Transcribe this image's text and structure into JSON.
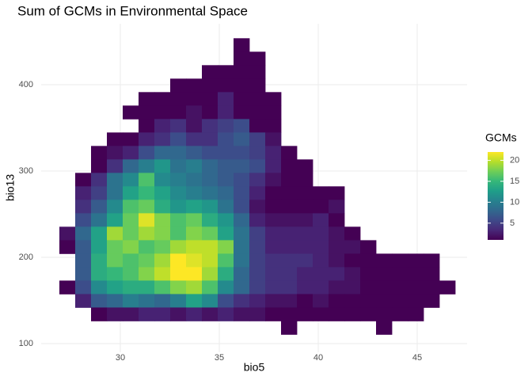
{
  "chart_data": {
    "type": "heatmap",
    "title": "Sum of GCMs in Environmental Space",
    "x_label": "bio5",
    "y_label": "bio13",
    "xlim": [
      26,
      47.52
    ],
    "ylim": [
      89.9,
      470.6
    ],
    "xticks": [
      30,
      35,
      40,
      45
    ],
    "yticks": [
      100,
      200,
      300,
      400
    ],
    "grid": true,
    "legend_title": "GCMs",
    "clim": [
      1,
      22
    ],
    "legend_ticks": [
      5,
      10,
      15,
      20
    ],
    "colormap": [
      "#440154",
      "#482878",
      "#3e4989",
      "#31688e",
      "#26828e",
      "#1f9e89",
      "#35b779",
      "#6ece58",
      "#b5de2b",
      "#fde725"
    ],
    "x": [
      27.32,
      28.12,
      28.92,
      29.72,
      30.52,
      31.32,
      32.12,
      32.92,
      33.72,
      34.52,
      35.32,
      36.12,
      36.92,
      37.72,
      38.52,
      39.32,
      40.12,
      40.92,
      41.72,
      42.52,
      43.32,
      44.12,
      44.92,
      45.72,
      46.52
    ],
    "y": [
      446,
      430.4,
      414.8,
      399.2,
      383.6,
      368,
      352.4,
      336.8,
      321.2,
      305.6,
      290,
      274.4,
      258.8,
      243.2,
      227.6,
      212,
      196.4,
      180.8,
      165.2,
      149.6,
      134,
      118.4
    ],
    "values": [
      [
        null,
        null,
        null,
        null,
        null,
        null,
        null,
        null,
        null,
        null,
        null,
        1,
        null,
        null,
        null,
        null,
        null,
        null,
        null,
        null,
        null,
        null,
        null,
        null,
        null
      ],
      [
        null,
        null,
        null,
        null,
        null,
        null,
        null,
        null,
        null,
        null,
        null,
        1,
        1,
        null,
        null,
        null,
        null,
        null,
        null,
        null,
        null,
        null,
        null,
        null,
        null
      ],
      [
        null,
        null,
        null,
        null,
        null,
        null,
        null,
        null,
        null,
        1,
        1,
        1,
        1,
        null,
        null,
        null,
        null,
        null,
        null,
        null,
        null,
        null,
        null,
        null,
        null
      ],
      [
        null,
        null,
        null,
        null,
        null,
        null,
        null,
        1,
        1,
        1,
        1,
        1,
        1,
        null,
        null,
        null,
        null,
        null,
        null,
        null,
        null,
        null,
        null,
        null,
        null
      ],
      [
        null,
        null,
        null,
        null,
        null,
        1,
        1,
        1,
        1,
        1,
        3,
        1,
        1,
        1,
        null,
        null,
        null,
        null,
        null,
        null,
        null,
        null,
        null,
        null,
        null
      ],
      [
        null,
        null,
        null,
        null,
        1,
        1,
        1,
        1,
        2,
        1,
        3,
        1,
        1,
        1,
        null,
        null,
        null,
        null,
        null,
        null,
        null,
        null,
        null,
        null,
        null
      ],
      [
        null,
        null,
        null,
        null,
        null,
        1,
        3,
        4,
        2,
        4,
        5,
        6,
        1,
        1,
        null,
        null,
        null,
        null,
        null,
        null,
        null,
        null,
        null,
        null,
        null
      ],
      [
        null,
        null,
        null,
        1,
        1,
        3,
        4,
        6,
        4,
        4,
        6,
        7,
        5,
        2,
        null,
        null,
        null,
        null,
        null,
        null,
        null,
        null,
        null,
        null,
        null
      ],
      [
        null,
        null,
        1,
        2,
        3,
        6,
        8,
        8,
        7,
        6,
        6,
        6,
        5,
        3,
        1,
        null,
        null,
        null,
        null,
        null,
        null,
        null,
        null,
        null,
        null
      ],
      [
        null,
        null,
        1,
        4,
        8,
        10,
        12,
        9,
        10,
        8,
        7,
        7,
        6,
        3,
        1,
        1,
        null,
        null,
        null,
        null,
        null,
        null,
        null,
        null,
        null
      ],
      [
        null,
        1,
        4,
        9,
        11,
        16,
        11,
        10,
        9,
        8,
        7,
        6,
        4,
        2,
        1,
        1,
        null,
        null,
        null,
        null,
        null,
        null,
        null,
        null,
        null
      ],
      [
        null,
        3,
        5,
        9,
        13,
        15,
        13,
        11,
        10,
        9,
        8,
        6,
        3,
        1,
        1,
        1,
        1,
        1,
        null,
        null,
        null,
        null,
        null,
        null,
        null
      ],
      [
        null,
        4,
        7,
        11,
        16,
        17,
        14,
        12,
        13,
        12,
        9,
        6,
        2,
        1,
        1,
        1,
        1,
        2,
        null,
        null,
        null,
        null,
        null,
        null,
        null
      ],
      [
        null,
        6,
        9,
        13,
        17,
        21,
        18,
        16,
        17,
        14,
        12,
        8,
        3,
        2,
        2,
        2,
        3,
        1,
        null,
        null,
        null,
        null,
        null,
        null,
        null
      ],
      [
        2,
        8,
        13,
        19,
        17,
        19,
        18,
        16,
        18,
        17,
        13,
        9,
        5,
        3,
        3,
        3,
        3,
        2,
        1,
        null,
        null,
        null,
        null,
        null,
        null
      ],
      [
        1,
        7,
        13,
        17,
        18,
        16,
        17,
        19,
        20,
        20,
        18,
        9,
        5,
        3,
        3,
        3,
        3,
        2,
        2,
        1,
        null,
        null,
        null,
        null,
        null
      ],
      [
        null,
        7,
        14,
        17,
        16,
        17,
        19,
        22,
        21,
        20,
        16,
        9,
        5,
        4,
        4,
        4,
        3,
        2,
        1,
        1,
        1,
        1,
        1,
        1,
        null
      ],
      [
        null,
        7,
        14,
        15,
        16,
        18,
        20,
        22,
        22,
        19,
        14,
        8,
        5,
        4,
        4,
        3,
        3,
        3,
        2,
        1,
        1,
        1,
        1,
        1,
        null
      ],
      [
        1,
        6,
        11,
        13,
        14,
        14,
        16,
        18,
        19,
        16,
        11,
        8,
        5,
        4,
        4,
        3,
        3,
        2,
        2,
        1,
        1,
        1,
        1,
        1,
        1
      ],
      [
        null,
        3,
        7,
        8,
        10,
        9,
        8,
        10,
        13,
        11,
        6,
        4,
        3,
        2,
        2,
        1,
        2,
        1,
        1,
        1,
        1,
        1,
        1,
        1,
        null
      ],
      [
        null,
        null,
        1,
        2,
        2,
        3,
        3,
        2,
        3,
        2,
        3,
        2,
        2,
        1,
        1,
        1,
        1,
        1,
        1,
        1,
        1,
        1,
        1,
        null,
        null
      ],
      [
        null,
        null,
        null,
        null,
        null,
        null,
        null,
        null,
        null,
        null,
        null,
        null,
        null,
        null,
        1,
        null,
        null,
        null,
        null,
        null,
        1,
        null,
        null,
        null,
        null
      ]
    ]
  }
}
